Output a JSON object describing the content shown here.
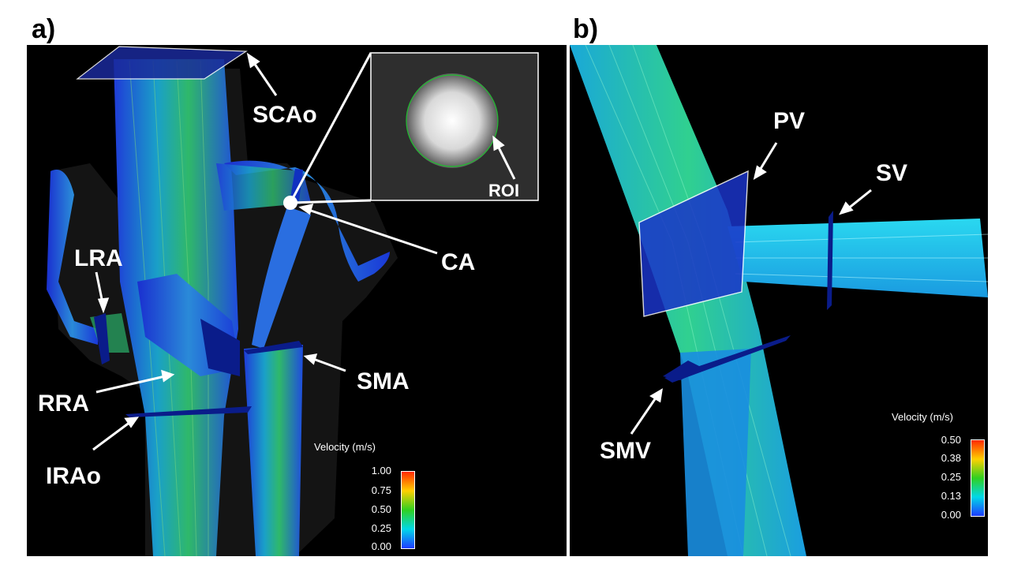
{
  "panel_a": {
    "label": "a)",
    "vessel_labels": {
      "scao": "SCAo",
      "ca": "CA",
      "lra": "LRA",
      "rra": "RRA",
      "sma": "SMA",
      "irao": "IRAo"
    },
    "inset_label": "ROI",
    "legend": {
      "title": "Velocity (m/s)",
      "ticks": [
        "1.00",
        "0.75",
        "0.50",
        "0.25",
        "0.00"
      ]
    }
  },
  "panel_b": {
    "label": "b)",
    "vessel_labels": {
      "pv": "PV",
      "sv": "SV",
      "smv": "SMV"
    },
    "legend": {
      "title": "Velocity (m/s)",
      "ticks": [
        "0.50",
        "0.38",
        "0.25",
        "0.13",
        "0.00"
      ]
    }
  },
  "colors": {
    "background": "#000000",
    "label_color": "#ffffff",
    "colormap": [
      "#ff2a00",
      "#ffd000",
      "#30d020",
      "#00d8e8",
      "#1e3cff"
    ]
  }
}
